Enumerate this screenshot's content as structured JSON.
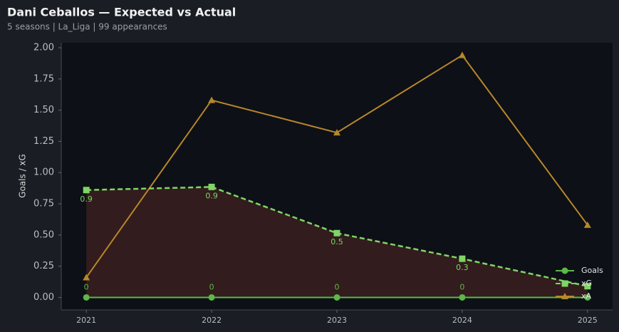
{
  "chart_data": {
    "type": "line",
    "title": "Dani Ceballos — Expected vs Actual",
    "subtitle": "5 seasons | La_Liga | 99 appearances",
    "y_label": "Goals / xG",
    "x": [
      2021,
      2022,
      2023,
      2024,
      2025
    ],
    "xlim": [
      2020.8,
      2025.2
    ],
    "xticks": [
      2021,
      2022,
      2023,
      2024,
      2025
    ],
    "ylim": [
      -0.1,
      2.04
    ],
    "yticks": [
      {
        "value": 0,
        "label": "0.00"
      },
      {
        "value": 0.25,
        "label": "0.25"
      },
      {
        "value": 0.5,
        "label": "0.50"
      },
      {
        "value": 0.75,
        "label": "0.75"
      },
      {
        "value": 1,
        "label": "1.00"
      },
      {
        "value": 1.25,
        "label": "1.25"
      },
      {
        "value": 1.5,
        "label": "1.50"
      },
      {
        "value": 1.75,
        "label": "1.75"
      },
      {
        "value": 2,
        "label": "2.00"
      }
    ],
    "legend": "lower right",
    "series": [
      {
        "name": "Goals",
        "color": "#5cb848",
        "marker": "circle",
        "dash": false,
        "values": [
          0,
          0,
          0,
          0,
          0
        ],
        "value_labels": [
          "0",
          "0",
          "0",
          "0",
          null
        ],
        "label_side": "above"
      },
      {
        "name": "xG",
        "color": "#7fd466",
        "marker": "square",
        "dash": true,
        "fill": "#3a1f1f",
        "values": [
          0.86,
          0.885,
          0.515,
          0.31,
          0.09
        ],
        "value_labels": [
          "0.9",
          "0.9",
          "0.5",
          "0.3",
          null
        ],
        "label_side": "below"
      },
      {
        "name": "xA",
        "color": "#b8872a",
        "marker": "triangle",
        "dash": false,
        "values": [
          0.16,
          1.58,
          1.32,
          1.94,
          0.58
        ]
      }
    ]
  }
}
